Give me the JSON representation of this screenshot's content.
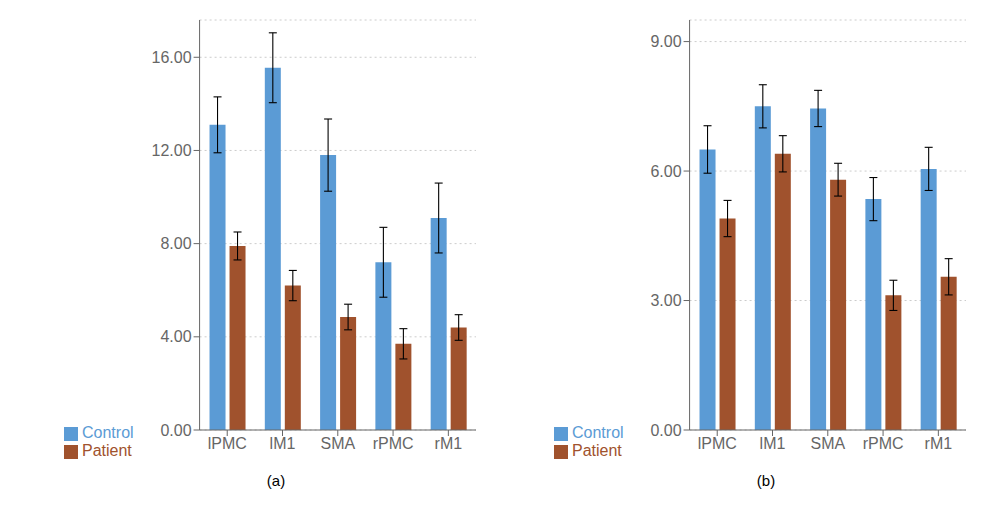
{
  "chart_data": [
    {
      "type": "bar",
      "title": "(a)",
      "categories": [
        "lPMC",
        "lM1",
        "SMA",
        "rPMC",
        "rM1"
      ],
      "series": [
        {
          "name": "Control",
          "color": "#5B9BD5",
          "values": [
            13.1,
            15.55,
            11.8,
            7.2,
            9.1
          ],
          "errors": [
            1.2,
            1.5,
            1.55,
            1.5,
            1.5
          ]
        },
        {
          "name": "Patient",
          "color": "#A0522D",
          "values": [
            7.9,
            6.2,
            4.85,
            3.7,
            4.4
          ],
          "errors": [
            0.6,
            0.65,
            0.55,
            0.65,
            0.55
          ]
        }
      ],
      "ylim": [
        0,
        17.6
      ],
      "yticks": [
        {
          "value": 0.0,
          "label": "0.00"
        },
        {
          "value": 4.0,
          "label": "4.00"
        },
        {
          "value": 8.0,
          "label": "8.00"
        },
        {
          "value": 12.0,
          "label": "12.00"
        },
        {
          "value": 16.0,
          "label": "16.00"
        }
      ],
      "grid": true,
      "legend": "bottom"
    },
    {
      "type": "bar",
      "title": "(b)",
      "categories": [
        "lPMC",
        "lM1",
        "SMA",
        "rPMC",
        "rM1"
      ],
      "series": [
        {
          "name": "Control",
          "color": "#5B9BD5",
          "values": [
            6.5,
            7.5,
            7.45,
            5.35,
            6.05
          ],
          "errors": [
            0.55,
            0.5,
            0.42,
            0.5,
            0.5
          ]
        },
        {
          "name": "Patient",
          "color": "#A0522D",
          "values": [
            4.9,
            6.4,
            5.8,
            3.12,
            3.55
          ],
          "errors": [
            0.42,
            0.42,
            0.38,
            0.35,
            0.42
          ]
        }
      ],
      "ylim": [
        0,
        9.5
      ],
      "yticks": [
        {
          "value": 0.0,
          "label": "0.00"
        },
        {
          "value": 3.0,
          "label": "3.00"
        },
        {
          "value": 6.0,
          "label": "6.00"
        },
        {
          "value": 9.0,
          "label": "9.00"
        }
      ],
      "grid": true,
      "legend": "bottom"
    }
  ]
}
